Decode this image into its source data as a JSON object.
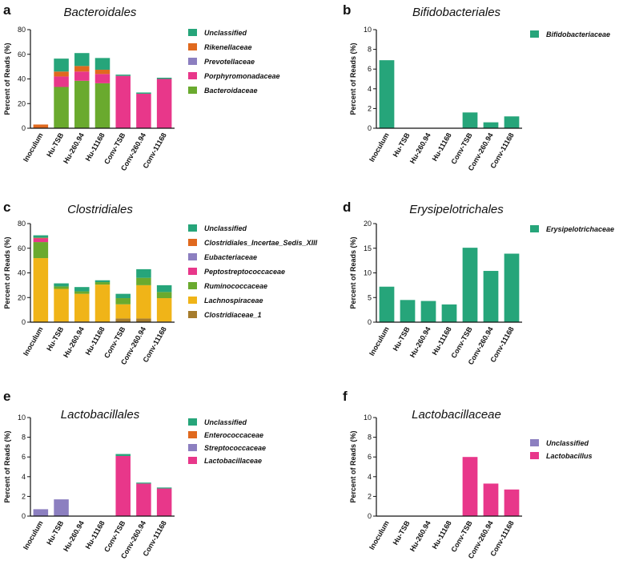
{
  "chart_data": [
    {
      "panel": "a",
      "type": "bar",
      "stacked": true,
      "title": "Bacteroidales",
      "xlabel": "",
      "ylabel": "Percent of Reads (%)",
      "ylim": [
        0,
        80
      ],
      "yticks": [
        0,
        20,
        40,
        60,
        80
      ],
      "categories": [
        "Inoculum",
        "Hu-TSB",
        "Hu-260.94",
        "Hu-11168",
        "Conv-TSB",
        "Conv-260.94",
        "Conv-11168"
      ],
      "series": [
        {
          "name": "Bacteroidaceae",
          "color": "#6aaa2e",
          "values": [
            0,
            33.5,
            38.5,
            36.5,
            0,
            0,
            0
          ]
        },
        {
          "name": "Porphyromonadaceae",
          "color": "#e8378a",
          "values": [
            0,
            8.5,
            7.5,
            7.5,
            42.5,
            28,
            40
          ]
        },
        {
          "name": "Prevotellaceae",
          "color": "#8c7fc0",
          "values": [
            0,
            0,
            0,
            0,
            0,
            0,
            0
          ]
        },
        {
          "name": "Rikenellaceae",
          "color": "#e0691e",
          "values": [
            3,
            4,
            4.5,
            3.5,
            0,
            0,
            0
          ]
        },
        {
          "name": "Unclassified",
          "color": "#26a57a",
          "values": [
            0,
            10.5,
            10.5,
            9.5,
            1,
            1,
            1
          ]
        }
      ]
    },
    {
      "panel": "b",
      "type": "bar",
      "stacked": true,
      "title": "Bifidobacteriales",
      "xlabel": "",
      "ylabel": "Percent of Reads (%)",
      "ylim": [
        0,
        10
      ],
      "yticks": [
        0,
        2,
        4,
        6,
        8,
        10
      ],
      "categories": [
        "Inoculum",
        "Hu-TSB",
        "Hu-260.94",
        "Hu-11168",
        "Conv-TSB",
        "Conv-260.94",
        "Conv-11168"
      ],
      "series": [
        {
          "name": "Bifidobacteriaceae",
          "color": "#26a57a",
          "values": [
            6.9,
            0,
            0,
            0,
            1.6,
            0.6,
            1.2
          ]
        }
      ]
    },
    {
      "panel": "c",
      "type": "bar",
      "stacked": true,
      "title": "Clostridiales",
      "xlabel": "",
      "ylabel": "Percent of Reads (%)",
      "ylim": [
        0,
        80
      ],
      "yticks": [
        0,
        20,
        40,
        60,
        80
      ],
      "categories": [
        "Inoculum",
        "Hu-TSB",
        "Hu-260.94",
        "Hu-11168",
        "Conv-TSB",
        "Conv-260.94",
        "Conv-11168"
      ],
      "series": [
        {
          "name": "Clostridiaceae_1",
          "color": "#a67c2c",
          "values": [
            0,
            0.5,
            0.5,
            0,
            3,
            3,
            0.5
          ]
        },
        {
          "name": "Lachnospiraceae",
          "color": "#f0b418",
          "values": [
            52,
            26.5,
            22.5,
            30.5,
            11.5,
            27,
            19
          ]
        },
        {
          "name": "Ruminococcaceae",
          "color": "#6aaa2e",
          "values": [
            13,
            2,
            2,
            2,
            5,
            6,
            5
          ]
        },
        {
          "name": "Peptostreptococcaceae",
          "color": "#e8378a",
          "values": [
            3,
            0,
            0,
            0,
            0,
            0,
            0
          ]
        },
        {
          "name": "Eubacteriaceae",
          "color": "#8c7fc0",
          "values": [
            0,
            0,
            0,
            0,
            0,
            0,
            0
          ]
        },
        {
          "name": "Clostridiales_Incertae_Sedis_XIII",
          "color": "#e0691e",
          "values": [
            0.5,
            0,
            0,
            0,
            0,
            0,
            0
          ]
        },
        {
          "name": "Unclassified",
          "color": "#26a57a",
          "values": [
            2,
            2.5,
            3.5,
            1.5,
            3.5,
            7,
            5.5
          ]
        }
      ]
    },
    {
      "panel": "d",
      "type": "bar",
      "stacked": true,
      "title": "Erysipelotrichales",
      "xlabel": "",
      "ylabel": "Percent of Reads (%)",
      "ylim": [
        0,
        20
      ],
      "yticks": [
        0,
        5,
        10,
        15,
        20
      ],
      "categories": [
        "Inoculum",
        "Hu-TSB",
        "Hu-260.94",
        "Hu-11168",
        "Conv-TSB",
        "Conv-260.94",
        "Conv-11168"
      ],
      "series": [
        {
          "name": "Erysipelotrichaceae",
          "color": "#26a57a",
          "values": [
            7.2,
            4.5,
            4.3,
            3.6,
            15.1,
            10.4,
            13.9
          ]
        }
      ]
    },
    {
      "panel": "e",
      "type": "bar",
      "stacked": true,
      "title": "Lactobacillales",
      "xlabel": "",
      "ylabel": "Percent of Reads (%)",
      "ylim": [
        0,
        10
      ],
      "yticks": [
        0,
        2,
        4,
        6,
        8,
        10
      ],
      "categories": [
        "Inoculum",
        "Hu-TSB",
        "Hu-260.94",
        "Hu-11168",
        "Conv-TSB",
        "Conv-260.94",
        "Conv-11168"
      ],
      "series": [
        {
          "name": "Lactobacillaceae",
          "color": "#e8378a",
          "values": [
            0,
            0,
            0,
            0,
            6.1,
            3.3,
            2.8
          ]
        },
        {
          "name": "Streptococcaceae",
          "color": "#8c7fc0",
          "values": [
            0.7,
            1.7,
            0,
            0,
            0,
            0,
            0
          ]
        },
        {
          "name": "Enterococcaceae",
          "color": "#e0691e",
          "values": [
            0,
            0,
            0,
            0,
            0,
            0,
            0
          ]
        },
        {
          "name": "Unclassified",
          "color": "#26a57a",
          "values": [
            0,
            0,
            0,
            0,
            0.2,
            0.1,
            0.1
          ]
        }
      ]
    },
    {
      "panel": "f",
      "type": "bar",
      "stacked": true,
      "title": "Lactobacillaceae",
      "xlabel": "",
      "ylabel": "Percent of Reads (%)",
      "ylim": [
        0,
        10
      ],
      "yticks": [
        0,
        2,
        4,
        6,
        8,
        10
      ],
      "categories": [
        "Inoculum",
        "Hu-TSB",
        "Hu-260.94",
        "Hu-11168",
        "Conv-TSB",
        "Conv-260.94",
        "Conv-11168"
      ],
      "series": [
        {
          "name": "Lactobacillus",
          "color": "#e8378a",
          "values": [
            0,
            0,
            0,
            0,
            6,
            3.3,
            2.7
          ]
        },
        {
          "name": "Unclassified",
          "color": "#8c7fc0",
          "values": [
            0,
            0,
            0,
            0,
            0,
            0,
            0
          ]
        }
      ]
    }
  ]
}
